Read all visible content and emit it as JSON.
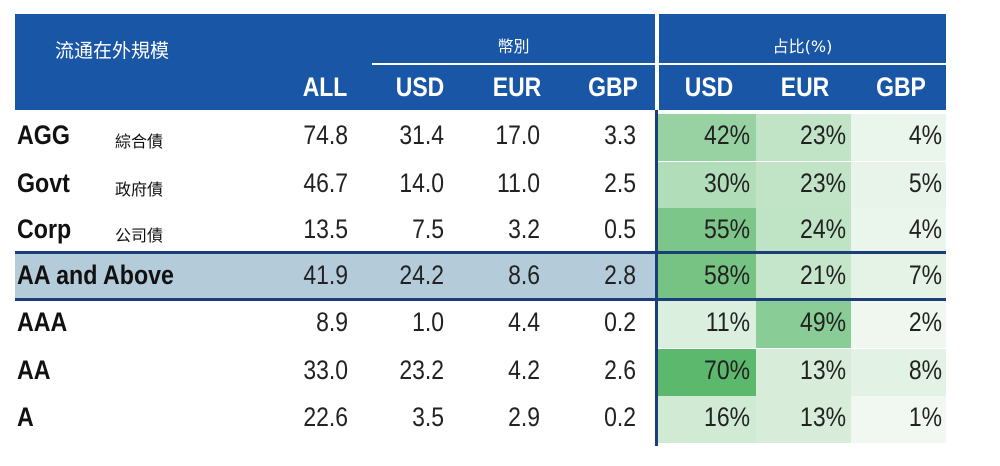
{
  "chart_data": {
    "type": "table",
    "header": {
      "scale_label": "流通在外規模",
      "currency_group": "幣別",
      "share_group": "占比(%)",
      "columns": [
        "ALL",
        "USD",
        "EUR",
        "GBP",
        "USD",
        "EUR",
        "GBP"
      ]
    },
    "rows": [
      {
        "code": "AGG",
        "name": "綜合債",
        "highlight": false,
        "all": "74.8",
        "usd": "31.4",
        "eur": "17.0",
        "gbp": "3.3",
        "pct_usd": "42%",
        "pct_eur": "23%",
        "pct_gbp": "4%"
      },
      {
        "code": "Govt",
        "name": "政府債",
        "highlight": false,
        "all": "46.7",
        "usd": "14.0",
        "eur": "11.0",
        "gbp": "2.5",
        "pct_usd": "30%",
        "pct_eur": "23%",
        "pct_gbp": "5%"
      },
      {
        "code": "Corp",
        "name": "公司債",
        "highlight": false,
        "all": "13.5",
        "usd": "7.5",
        "eur": "3.2",
        "gbp": "0.5",
        "pct_usd": "55%",
        "pct_eur": "24%",
        "pct_gbp": "4%"
      },
      {
        "code": "AA and Above",
        "name": "",
        "highlight": true,
        "all": "41.9",
        "usd": "24.2",
        "eur": "8.6",
        "gbp": "2.8",
        "pct_usd": "58%",
        "pct_eur": "21%",
        "pct_gbp": "7%"
      },
      {
        "code": "AAA",
        "name": "",
        "highlight": false,
        "all": "8.9",
        "usd": "1.0",
        "eur": "4.4",
        "gbp": "0.2",
        "pct_usd": "11%",
        "pct_eur": "49%",
        "pct_gbp": "2%"
      },
      {
        "code": "AA",
        "name": "",
        "highlight": false,
        "all": "33.0",
        "usd": "23.2",
        "eur": "4.2",
        "gbp": "2.6",
        "pct_usd": "70%",
        "pct_eur": "13%",
        "pct_gbp": "8%"
      },
      {
        "code": "A",
        "name": "",
        "highlight": false,
        "all": "22.6",
        "usd": "3.5",
        "eur": "2.9",
        "gbp": "0.2",
        "pct_usd": "16%",
        "pct_eur": "13%",
        "pct_gbp": "1%"
      }
    ],
    "colors": {
      "header_bg": "#1a56a6",
      "highlight_row": "#b4ccda",
      "divider": "#1a3e7a",
      "heat_low": "#f3f9f3",
      "heat_high": "#5cb86c"
    }
  }
}
